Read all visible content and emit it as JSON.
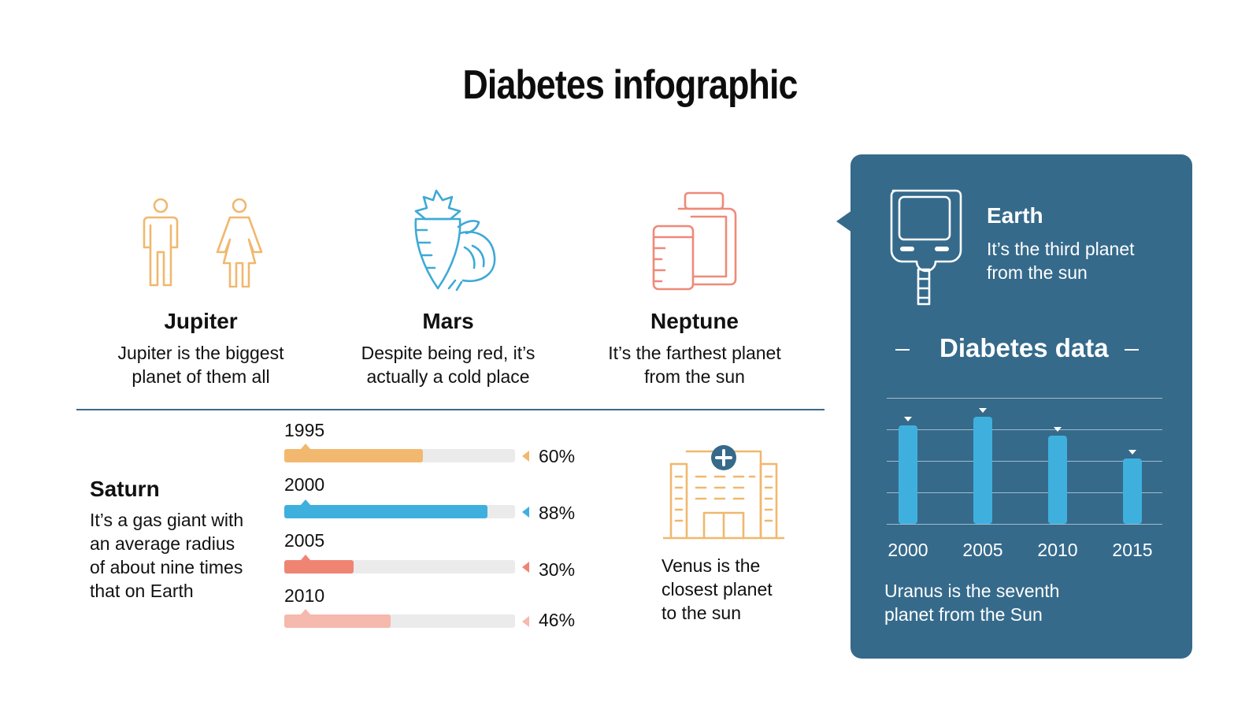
{
  "title": "Diabetes infographic",
  "features": [
    {
      "title": "Jupiter",
      "desc_line1": "Jupiter is the biggest",
      "desc_line2": "planet of them all",
      "icon": "people-icon",
      "color": "#f0b86e"
    },
    {
      "title": "Mars",
      "desc_line1": "Despite being red, it’s",
      "desc_line2": "actually a cold place",
      "icon": "vegetables-icon",
      "color": "#3fa9d6"
    },
    {
      "title": "Neptune",
      "desc_line1": "It’s the farthest planet",
      "desc_line2": "from the sun",
      "icon": "medicine-bottles-icon",
      "color": "#ee8a78"
    }
  ],
  "saturn": {
    "title": "Saturn",
    "desc_lines": [
      "It’s a gas giant with",
      "an average radius",
      "of about nine times",
      "that on Earth"
    ]
  },
  "progress": [
    {
      "year": "1995",
      "percent_label": "60%",
      "value": 60,
      "color": "#f2b870"
    },
    {
      "year": "2000",
      "percent_label": "88%",
      "value": 88,
      "color": "#3fb0de"
    },
    {
      "year": "2005",
      "percent_label": "30%",
      "value": 30,
      "color": "#f08473"
    },
    {
      "year": "2010",
      "percent_label": "46%",
      "value": 46,
      "color": "#f5b9ad"
    }
  ],
  "venus": {
    "lines": [
      "Venus is the",
      "closest planet",
      "to the sun"
    ],
    "icon": "hospital-icon"
  },
  "panel": {
    "earth_title": "Earth",
    "earth_desc_lines": [
      "It’s the third planet",
      "from the sun"
    ],
    "device_icon": "glucose-meter-icon",
    "chart_title": "Diabetes data",
    "dash_left": "–",
    "dash_right": "–",
    "uranus_lines": [
      "Uranus is the seventh",
      "planet from the Sun"
    ]
  },
  "chart_data": [
    {
      "type": "bar",
      "title": "Diabetes data",
      "categories": [
        "2000",
        "2005",
        "2010",
        "2015"
      ],
      "values": [
        78,
        85,
        70,
        52
      ],
      "ylim": [
        0,
        100
      ],
      "grid": true,
      "bar_color": "#3fb0de"
    },
    {
      "type": "bar",
      "orientation": "horizontal",
      "categories": [
        "1995",
        "2000",
        "2005",
        "2010"
      ],
      "values": [
        60,
        88,
        30,
        46
      ],
      "ylim": [
        0,
        100
      ]
    }
  ]
}
